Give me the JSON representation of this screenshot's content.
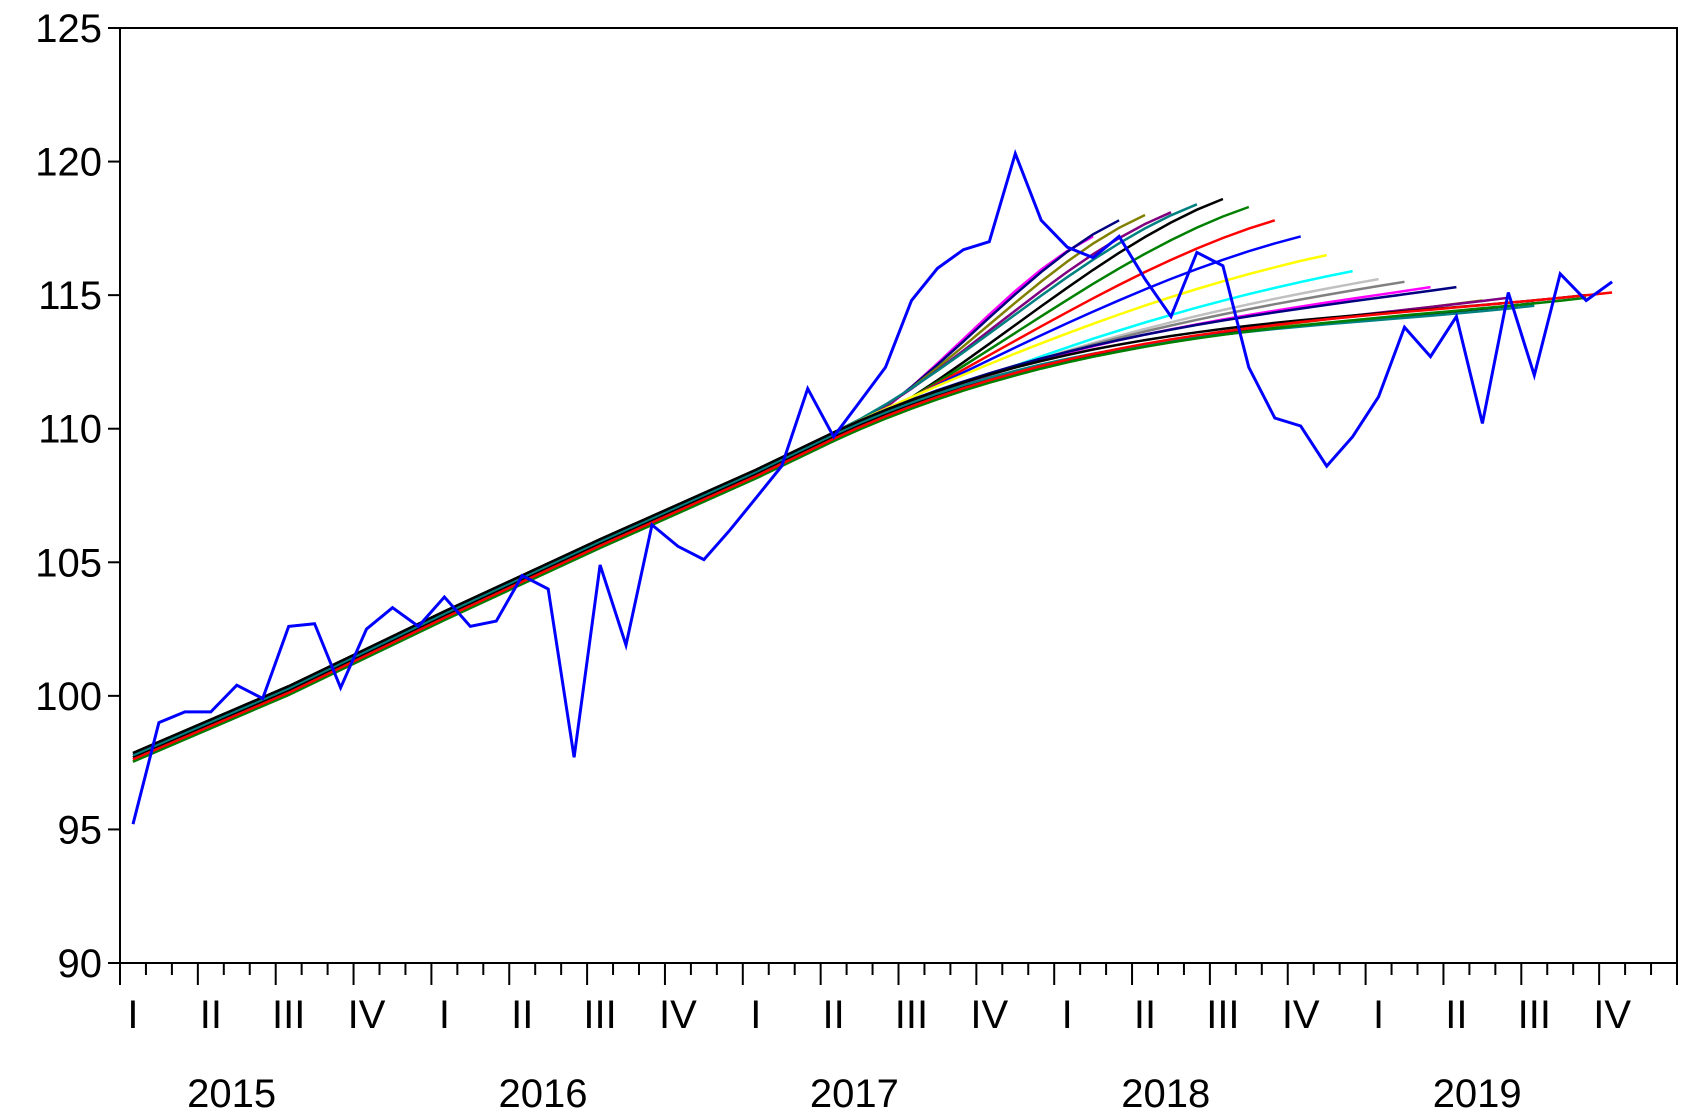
{
  "chart_data": {
    "type": "line",
    "title": "",
    "xlabel": "",
    "ylabel": "",
    "ylim": [
      90,
      125
    ],
    "yticks": [
      90,
      95,
      100,
      105,
      110,
      115,
      120,
      125
    ],
    "x_start": "2015-01",
    "x_end": "2019-12",
    "years": [
      "2015",
      "2016",
      "2017",
      "2018",
      "2019"
    ],
    "quarters": [
      "I",
      "II",
      "III",
      "IV"
    ],
    "grid": false,
    "legend": "none",
    "actual": {
      "color": "#0000ff",
      "values": [
        95.2,
        99.0,
        99.4,
        99.4,
        100.4,
        99.9,
        102.6,
        102.7,
        100.3,
        102.5,
        103.3,
        102.6,
        103.7,
        102.6,
        102.8,
        104.5,
        104.0,
        97.7,
        104.9,
        101.9,
        106.4,
        105.6,
        105.1,
        106.2,
        107.4,
        108.6,
        111.5,
        109.7,
        111.0,
        112.3,
        114.8,
        116.0,
        116.7,
        117.0,
        120.3,
        117.8,
        116.8,
        116.4,
        117.2,
        115.6,
        114.2,
        116.6,
        116.1,
        112.3,
        110.4,
        110.1,
        108.6,
        109.7,
        111.2,
        113.8,
        112.7,
        114.2,
        110.2,
        115.1,
        112.0,
        115.8,
        114.8,
        115.5
      ]
    },
    "forecast_series": [
      {
        "color": "#ff00ff",
        "end_index": 37,
        "end_value": 117.2
      },
      {
        "color": "#000080",
        "end_index": 38,
        "end_value": 117.8
      },
      {
        "color": "#808000",
        "end_index": 39,
        "end_value": 118.0
      },
      {
        "color": "#800080",
        "end_index": 40,
        "end_value": 118.1
      },
      {
        "color": "#008080",
        "end_index": 41,
        "end_value": 118.4
      },
      {
        "color": "#000000",
        "end_index": 42,
        "end_value": 118.6
      },
      {
        "color": "#008000",
        "end_index": 43,
        "end_value": 118.3
      },
      {
        "color": "#ff0000",
        "end_index": 44,
        "end_value": 117.8
      },
      {
        "color": "#0000ff",
        "end_index": 45,
        "end_value": 117.2
      },
      {
        "color": "#ffff00",
        "end_index": 46,
        "end_value": 116.5
      },
      {
        "color": "#00ffff",
        "end_index": 47,
        "end_value": 115.9
      },
      {
        "color": "#c0c0c0",
        "end_index": 48,
        "end_value": 115.6
      },
      {
        "color": "#808080",
        "end_index": 49,
        "end_value": 115.5
      },
      {
        "color": "#ff00ff",
        "end_index": 50,
        "end_value": 115.3
      },
      {
        "color": "#000080",
        "end_index": 51,
        "end_value": 115.3
      },
      {
        "color": "#808000",
        "end_index": 52,
        "end_value": 114.8
      },
      {
        "color": "#800080",
        "end_index": 53,
        "end_value": 114.9
      },
      {
        "color": "#000000",
        "end_index": 54,
        "end_value": 114.7
      },
      {
        "color": "#008080",
        "end_index": 54,
        "end_value": 114.6
      },
      {
        "color": "#000000",
        "end_index": 56,
        "end_value": 115.0
      },
      {
        "color": "#008000",
        "end_index": 56,
        "end_value": 114.9
      },
      {
        "color": "#ff0000",
        "end_index": 57,
        "end_value": 115.1
      }
    ]
  }
}
